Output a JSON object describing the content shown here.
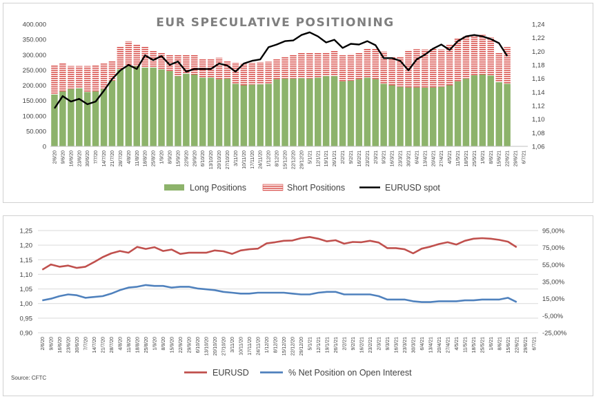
{
  "chart_data": [
    {
      "type": "bar",
      "title": "EUR SPECULATIVE POSITIONING",
      "stacked": true,
      "categories": [
        "2/6/20",
        "9/6/20",
        "16/6/20",
        "23/6/20",
        "30/6/20",
        "7/7/20",
        "14/7/20",
        "21/7/20",
        "28/7/20",
        "4/8/20",
        "11/8/20",
        "18/8/20",
        "25/8/20",
        "1/9/20",
        "8/9/20",
        "15/9/20",
        "22/9/20",
        "29/9/20",
        "6/10/20",
        "13/10/20",
        "20/10/20",
        "27/10/20",
        "3/11/20",
        "10/11/20",
        "17/11/20",
        "24/11/20",
        "1/12/20",
        "8/12/20",
        "15/12/20",
        "22/12/20",
        "29/12/20",
        "5/1/21",
        "12/1/21",
        "19/1/21",
        "26/1/21",
        "2/2/21",
        "9/2/21",
        "16/2/21",
        "23/2/21",
        "2/3/21",
        "9/3/21",
        "16/3/21",
        "23/3/21",
        "30/3/21",
        "6/4/21",
        "13/4/21",
        "20/4/21",
        "27/4/21",
        "4/5/21",
        "11/5/21",
        "18/5/21",
        "25/5/21",
        "1/6/21",
        "8/6/21",
        "15/6/21",
        "22/6/21",
        "29/6/21",
        "6/7/21"
      ],
      "series": [
        {
          "name": "Long Positions",
          "color": "#8db36b",
          "axis": "left",
          "values": [
            170000,
            180000,
            188000,
            190000,
            178000,
            180000,
            188000,
            215000,
            252000,
            262000,
            263000,
            258000,
            258000,
            252000,
            247000,
            230000,
            238000,
            235000,
            225000,
            225000,
            220000,
            222000,
            205000,
            200000,
            202000,
            203000,
            205000,
            220000,
            222000,
            222000,
            223000,
            222000,
            225000,
            230000,
            230000,
            213000,
            215000,
            220000,
            225000,
            220000,
            205000,
            200000,
            195000,
            193000,
            193000,
            192000,
            193000,
            195000,
            200000,
            213000,
            222000,
            233000,
            235000,
            232000,
            210000,
            205000,
            null,
            null
          ]
        },
        {
          "name": "Short Positions",
          "color": "#d9534f",
          "axis": "left",
          "values": [
            97000,
            93000,
            75000,
            73000,
            85000,
            85000,
            83000,
            63000,
            75000,
            82000,
            72000,
            68000,
            55000,
            55000,
            53000,
            70000,
            63000,
            65000,
            63000,
            63000,
            70000,
            58000,
            70000,
            70000,
            73000,
            73000,
            72000,
            65000,
            73000,
            78000,
            82000,
            85000,
            80000,
            78000,
            82000,
            85000,
            87000,
            85000,
            95000,
            100000,
            105000,
            95000,
            100000,
            122000,
            125000,
            125000,
            128000,
            122000,
            132000,
            140000,
            140000,
            130000,
            130000,
            125000,
            95000,
            120000,
            null,
            null
          ]
        },
        {
          "name": "EURUSD spot",
          "color": "#000000",
          "axis": "right",
          "kind": "line",
          "values": [
            1.116,
            1.134,
            1.126,
            1.13,
            1.122,
            1.126,
            1.142,
            1.159,
            1.172,
            1.18,
            1.174,
            1.194,
            1.187,
            1.193,
            1.18,
            1.185,
            1.17,
            1.174,
            1.174,
            1.174,
            1.182,
            1.179,
            1.17,
            1.182,
            1.186,
            1.188,
            1.206,
            1.21,
            1.215,
            1.216,
            1.224,
            1.228,
            1.222,
            1.213,
            1.217,
            1.205,
            1.211,
            1.21,
            1.215,
            1.209,
            1.19,
            1.19,
            1.186,
            1.172,
            1.188,
            1.195,
            1.204,
            1.21,
            1.202,
            1.215,
            1.222,
            1.224,
            1.222,
            1.218,
            1.212,
            1.193,
            null,
            null
          ]
        }
      ],
      "ylim_left": [
        0,
        400000
      ],
      "yticks_left": [
        "0",
        "50.000",
        "100.000",
        "150.000",
        "200.000",
        "250.000",
        "300.000",
        "350.000",
        "400.000"
      ],
      "ylim_right": [
        1.06,
        1.24
      ],
      "yticks_right": [
        "1,06",
        "1,08",
        "1,10",
        "1,12",
        "1,14",
        "1,16",
        "1,18",
        "1,20",
        "1,22",
        "1,24"
      ],
      "legend_position": "bottom",
      "grid": false
    },
    {
      "type": "line",
      "title": "",
      "categories": [
        "2/6/20",
        "9/6/20",
        "16/6/20",
        "23/6/20",
        "30/6/20",
        "7/7/20",
        "14/7/20",
        "21/7/20",
        "28/7/20",
        "4/8/20",
        "11/8/20",
        "18/8/20",
        "25/8/20",
        "1/9/20",
        "8/9/20",
        "15/9/20",
        "22/9/20",
        "29/9/20",
        "6/10/20",
        "13/10/20",
        "20/10/20",
        "27/10/20",
        "3/11/20",
        "10/11/20",
        "17/11/20",
        "24/11/20",
        "1/12/20",
        "8/12/20",
        "15/12/20",
        "22/12/20",
        "29/12/20",
        "5/1/21",
        "12/1/21",
        "19/1/21",
        "26/1/21",
        "2/2/21",
        "9/2/21",
        "16/2/21",
        "23/2/21",
        "2/3/21",
        "9/3/21",
        "16/3/21",
        "23/3/21",
        "30/3/21",
        "6/4/21",
        "13/4/21",
        "20/4/21",
        "27/4/21",
        "4/5/21",
        "11/5/21",
        "18/5/21",
        "25/5/21",
        "1/6/21",
        "8/6/21",
        "15/6/21",
        "22/6/21",
        "29/6/21",
        "6/7/21"
      ],
      "series": [
        {
          "name": "EURUSD",
          "color": "#c0504d",
          "axis": "left",
          "values": [
            1.116,
            1.134,
            1.126,
            1.13,
            1.122,
            1.126,
            1.142,
            1.159,
            1.172,
            1.18,
            1.174,
            1.194,
            1.187,
            1.193,
            1.18,
            1.185,
            1.17,
            1.174,
            1.174,
            1.174,
            1.182,
            1.179,
            1.17,
            1.182,
            1.186,
            1.188,
            1.206,
            1.21,
            1.215,
            1.216,
            1.224,
            1.228,
            1.222,
            1.213,
            1.217,
            1.205,
            1.211,
            1.21,
            1.215,
            1.209,
            1.19,
            1.19,
            1.186,
            1.172,
            1.188,
            1.195,
            1.204,
            1.21,
            1.202,
            1.215,
            1.222,
            1.224,
            1.222,
            1.218,
            1.212,
            1.193,
            null,
            null
          ]
        },
        {
          "name": "% Net Position on Open Interest",
          "color": "#4f81bd",
          "axis": "right",
          "values": [
            13,
            15,
            18,
            20,
            19,
            16,
            17,
            18,
            21,
            25,
            28,
            29,
            31,
            30,
            30,
            28,
            29,
            29,
            27,
            26,
            25,
            23,
            22,
            21,
            21,
            22,
            22,
            22,
            22,
            21,
            20,
            20,
            22,
            23,
            23,
            20,
            20,
            20,
            20,
            18,
            14,
            14,
            14,
            12,
            11,
            11,
            12,
            12,
            12,
            13,
            13,
            14,
            14,
            14,
            16,
            11,
            null,
            null
          ]
        }
      ],
      "ylim_left": [
        0.9,
        1.25
      ],
      "yticks_left": [
        "0,90",
        "0,95",
        "1,00",
        "1,05",
        "1,10",
        "1,15",
        "1,20",
        "1,25"
      ],
      "ylim_right": [
        -25,
        95
      ],
      "yticks_right": [
        "-25,00%",
        "-5,00%",
        "15,00%",
        "35,00%",
        "55,00%",
        "75,00%",
        "95,00%"
      ],
      "legend_position": "bottom",
      "grid": true,
      "source": "Source: CFTC"
    }
  ]
}
